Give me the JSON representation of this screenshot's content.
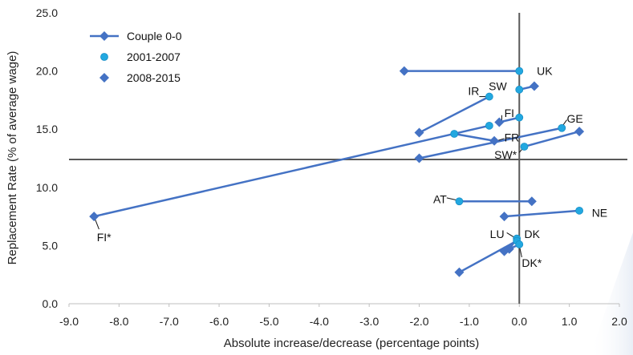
{
  "chart_data": {
    "type": "scatter",
    "xlabel": "Absolute increase/decrease (percentage points)",
    "ylabel": "Replacement Rate (% of average wage)",
    "xlim": [
      -9.0,
      2.0
    ],
    "ylim": [
      0.0,
      25.0
    ],
    "x_ticks": [
      "-9.0",
      "-8.0",
      "-7.0",
      "-6.0",
      "-5.0",
      "-4.0",
      "-3.0",
      "-2.0",
      "-1.0",
      "0.0",
      "1.0",
      "2.0"
    ],
    "y_ticks": [
      "0.0",
      "5.0",
      "10.0",
      "15.0",
      "20.0",
      "25.0"
    ],
    "reference_lines": {
      "x": 0.0,
      "y": 12.4
    },
    "grid": false,
    "legend_position": "top-left",
    "colors": {
      "line": "#4472C4",
      "circle": "#22A8E0",
      "diamond": "#4472C4",
      "reference": "#595959"
    },
    "legend": [
      {
        "label": "Couple 0-0",
        "marker": "line-diamond"
      },
      {
        "label": "2001-2007",
        "marker": "circle"
      },
      {
        "label": "2008-2015",
        "marker": "diamond"
      }
    ],
    "series": [
      {
        "label": "UK",
        "p2001_2007": [
          0.0,
          20.0
        ],
        "p2008_2015": [
          -2.3,
          20.0
        ]
      },
      {
        "label": "SW",
        "p2001_2007": [
          0.0,
          18.4
        ],
        "p2008_2015": [
          0.3,
          18.7
        ]
      },
      {
        "label": "IR",
        "p2001_2007": [
          -0.6,
          17.8
        ],
        "p2008_2015": [
          -2.0,
          14.7
        ]
      },
      {
        "label": "FI",
        "p2001_2007": [
          0.0,
          16.0
        ],
        "p2008_2015": [
          -0.4,
          15.6
        ]
      },
      {
        "label": "FR",
        "p2001_2007": [
          -1.3,
          14.6
        ],
        "p2008_2015": [
          -0.5,
          14.0
        ]
      },
      {
        "label": "GE",
        "p2001_2007": [
          0.85,
          15.1
        ],
        "p2008_2015": [
          -2.0,
          12.5
        ]
      },
      {
        "label": "SW*",
        "p2001_2007": [
          0.1,
          13.5
        ],
        "p2008_2015": [
          1.2,
          14.8
        ]
      },
      {
        "label": "FI*",
        "p2001_2007": [
          -0.6,
          15.3
        ],
        "p2008_2015": [
          -8.5,
          7.5
        ]
      },
      {
        "label": "AT",
        "p2001_2007": [
          -1.2,
          8.8
        ],
        "p2008_2015": [
          0.25,
          8.8
        ]
      },
      {
        "label": "NE",
        "p2001_2007": [
          1.2,
          8.0
        ],
        "p2008_2015": [
          -0.3,
          7.5
        ]
      },
      {
        "label": "LU",
        "p2001_2007": [
          -0.05,
          5.6
        ],
        "p2008_2015": [
          -0.2,
          4.7
        ]
      },
      {
        "label": "DK",
        "p2001_2007": [
          -0.05,
          5.4
        ],
        "p2008_2015": [
          -1.2,
          2.7
        ]
      },
      {
        "label": "DK*",
        "p2001_2007": [
          0.0,
          5.1
        ],
        "p2008_2015": [
          -0.3,
          4.5
        ]
      }
    ],
    "point_labels": [
      {
        "text": "UK",
        "at": [
          0.35,
          20.0
        ],
        "anchor": "start"
      },
      {
        "text": "SW",
        "at": [
          -0.25,
          18.7
        ],
        "anchor": "end"
      },
      {
        "text": "IR",
        "at": [
          -0.8,
          18.3
        ],
        "anchor": "end"
      },
      {
        "text": "FI",
        "at": [
          -0.2,
          16.4
        ],
        "anchor": "middle"
      },
      {
        "text": "FR",
        "at": [
          -0.15,
          14.3
        ],
        "anchor": "middle"
      },
      {
        "text": "GE",
        "at": [
          0.95,
          15.9
        ],
        "anchor": "start"
      },
      {
        "text": "SW*",
        "at": [
          -0.05,
          12.8
        ],
        "anchor": "end"
      },
      {
        "text": "FI*",
        "at": [
          -8.3,
          5.7
        ],
        "anchor": "middle"
      },
      {
        "text": "AT",
        "at": [
          -1.45,
          9.0
        ],
        "anchor": "end"
      },
      {
        "text": "NE",
        "at": [
          1.45,
          7.8
        ],
        "anchor": "start"
      },
      {
        "text": "LU",
        "at": [
          -0.3,
          6.0
        ],
        "anchor": "end"
      },
      {
        "text": "DK",
        "at": [
          0.1,
          6.0
        ],
        "anchor": "start"
      },
      {
        "text": "DK*",
        "at": [
          0.05,
          3.5
        ],
        "anchor": "start"
      }
    ],
    "leaders": [
      {
        "from": [
          -0.8,
          17.8
        ],
        "to": [
          -0.65,
          17.8
        ]
      },
      {
        "from": [
          -0.35,
          16.2
        ],
        "to": [
          -0.35,
          15.7
        ]
      },
      {
        "from": [
          -0.3,
          14.2
        ],
        "to": [
          -0.45,
          14.0
        ]
      },
      {
        "from": [
          0.95,
          15.8
        ],
        "to": [
          0.85,
          15.2
        ]
      },
      {
        "from": [
          0.0,
          13.0
        ],
        "to": [
          0.1,
          13.5
        ]
      },
      {
        "from": [
          -8.4,
          6.4
        ],
        "to": [
          -8.5,
          7.5
        ]
      },
      {
        "from": [
          -1.45,
          9.1
        ],
        "to": [
          -1.25,
          8.9
        ]
      },
      {
        "from": [
          -0.25,
          6.1
        ],
        "to": [
          -0.1,
          5.7
        ]
      },
      {
        "from": [
          0.05,
          4.0
        ],
        "to": [
          0.0,
          5.0
        ]
      }
    ]
  }
}
